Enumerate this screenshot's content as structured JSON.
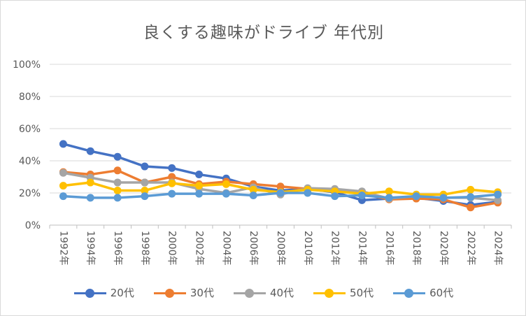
{
  "chart_data": {
    "type": "line",
    "title": "良くする趣味がドライブ 年代別",
    "xlabel": "",
    "ylabel": "",
    "categories": [
      "1992年",
      "1994年",
      "1996年",
      "1998年",
      "2000年",
      "2002年",
      "2004年",
      "2006年",
      "2008年",
      "2010年",
      "2012年",
      "2014年",
      "2016年",
      "2018年",
      "2020年",
      "2022年",
      "2024年"
    ],
    "yticks": [
      "0%",
      "20%",
      "40%",
      "60%",
      "80%",
      "100%"
    ],
    "ylim": [
      0,
      100
    ],
    "grid": true,
    "legend_position": "bottom",
    "series": [
      {
        "name": "20代",
        "color": "#4472c4",
        "values": [
          50.5,
          46,
          42.5,
          36.5,
          35.5,
          31.5,
          29,
          24,
          21.5,
          22.5,
          20.5,
          15.5,
          16.5,
          17,
          15,
          12.5,
          14.5
        ]
      },
      {
        "name": "30代",
        "color": "#ed7d31",
        "values": [
          33,
          31.5,
          34,
          26.5,
          30,
          25.5,
          27,
          25.5,
          24,
          22.5,
          21.5,
          19.5,
          16,
          16.5,
          16,
          11,
          14
        ]
      },
      {
        "name": "40代",
        "color": "#a5a5a5",
        "values": [
          32.5,
          29.5,
          26.5,
          26.5,
          26.5,
          22.5,
          20,
          23.5,
          19,
          23,
          22.5,
          21,
          16.5,
          18,
          17,
          17,
          15.5
        ]
      },
      {
        "name": "50代",
        "color": "#ffc000",
        "values": [
          24.5,
          26.5,
          21.5,
          21.5,
          26,
          24.5,
          25.5,
          22,
          20.5,
          22,
          21,
          19.5,
          21,
          19,
          19,
          22,
          20.5
        ]
      },
      {
        "name": "60代",
        "color": "#5b9bd5",
        "values": [
          18,
          17,
          17,
          18,
          19.5,
          19.5,
          19.5,
          18.5,
          20,
          20,
          18,
          18.5,
          17,
          18,
          17,
          17.5,
          19
        ]
      }
    ]
  }
}
